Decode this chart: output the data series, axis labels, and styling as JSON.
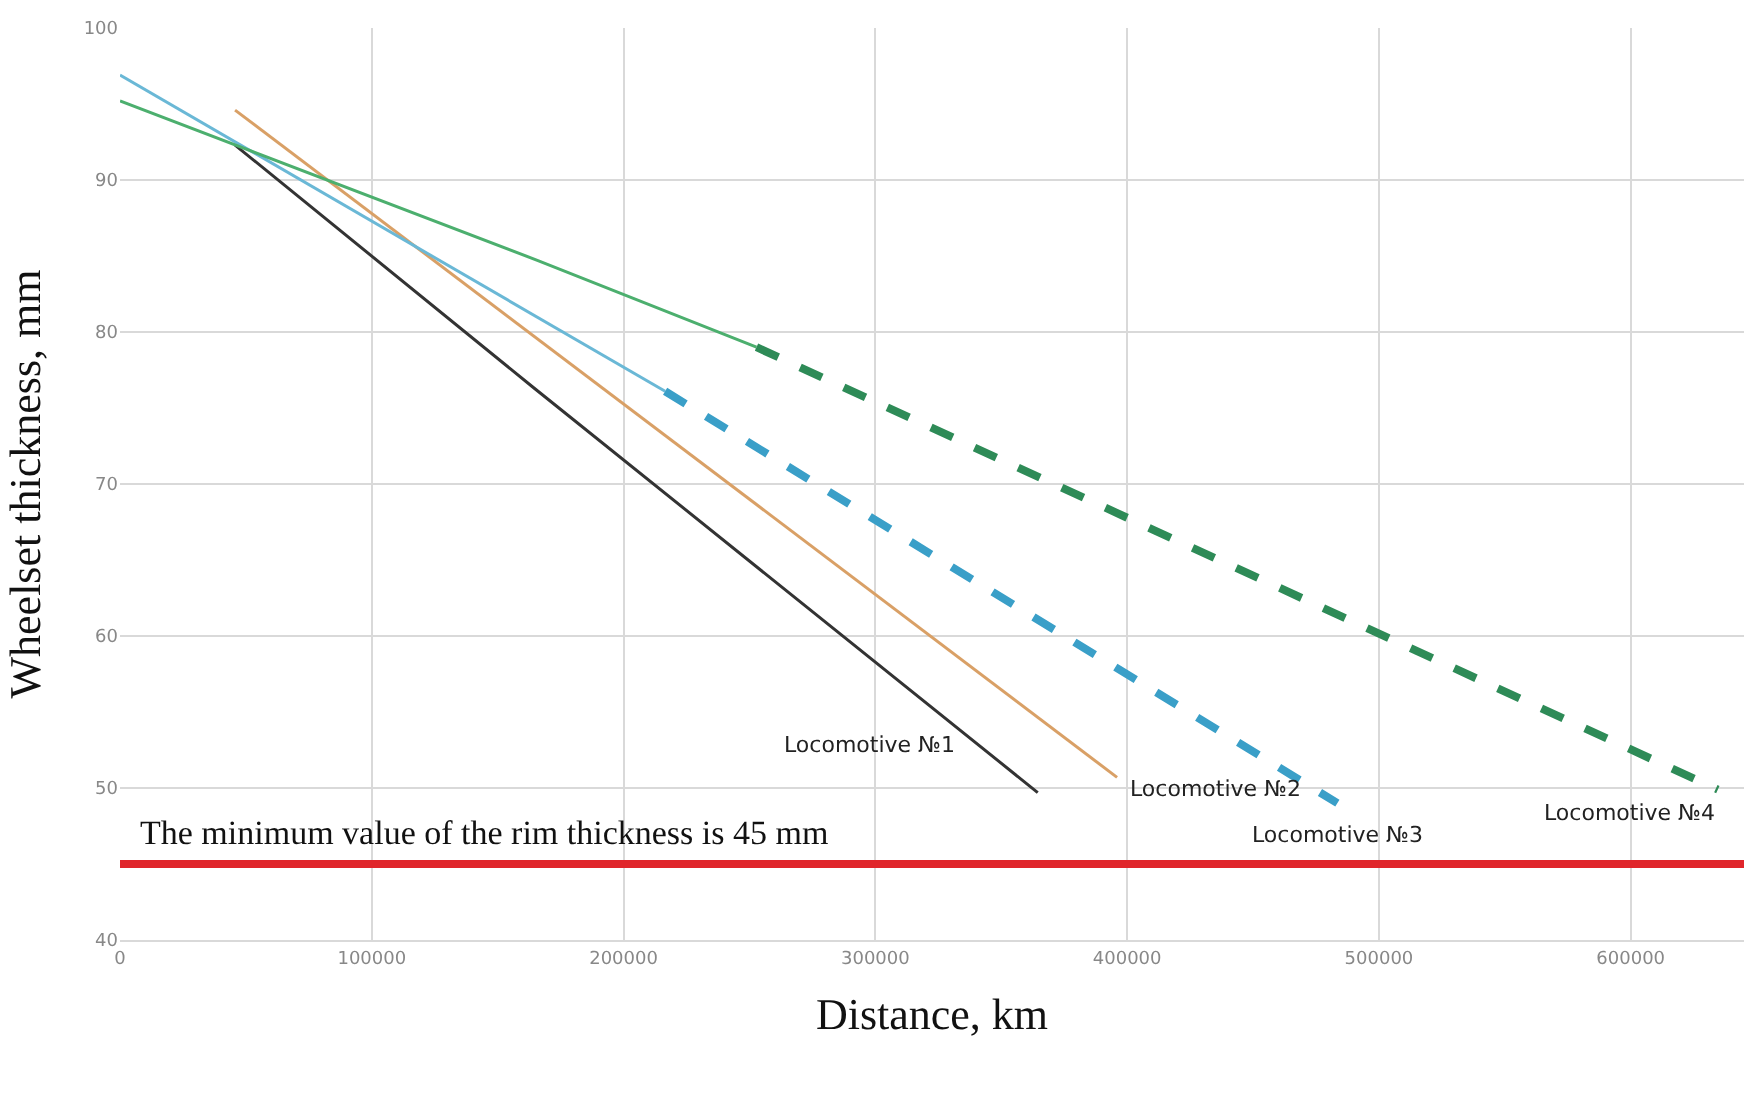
{
  "chart_data": {
    "type": "line",
    "xlabel": "Distance, km",
    "ylabel": "Wheelset thickness, mm",
    "xlim": [
      0,
      645000
    ],
    "ylim": [
      40,
      100
    ],
    "xticks": [
      0,
      100000,
      200000,
      300000,
      400000,
      500000,
      600000
    ],
    "yticks": [
      40,
      50,
      60,
      70,
      80,
      90,
      100
    ],
    "grid": true,
    "legend": false,
    "marker": "none",
    "series": [
      {
        "name": "Locomotive №1",
        "color": "#333333",
        "line_style": "solid",
        "x": [
          45700,
          163800,
          364500
        ],
        "values": [
          92.3,
          76.4,
          49.7
        ]
      },
      {
        "name": "Locomotive №2",
        "color": "#d9a066",
        "line_style": "solid",
        "x": [
          45700,
          396000
        ],
        "values": [
          94.6,
          50.7
        ]
      },
      {
        "color": "#6ab8d6",
        "line_style": "solid",
        "x": [
          0,
          216500
        ],
        "values": [
          96.9,
          76.1
        ]
      },
      {
        "name": "Locomotive №3",
        "color": "#3a9fc8",
        "line_style": "dashed",
        "x": [
          216500,
          483500
        ],
        "values": [
          76.1,
          49.0
        ]
      },
      {
        "color": "#4caf6e",
        "line_style": "solid",
        "x": [
          0,
          166000,
          252800
        ],
        "values": [
          95.2,
          84.7,
          79.0
        ]
      },
      {
        "name": "Locomotive №4",
        "color": "#2e8b57",
        "line_style": "dashed",
        "x": [
          252800,
          634600
        ],
        "values": [
          79.0,
          49.9
        ]
      }
    ],
    "ref_lines": [
      {
        "axis": "y",
        "value": 45,
        "label": "The minimum value of the rim thickness is 45 mm",
        "color": "#e0262b",
        "line_style": "solid"
      }
    ]
  }
}
